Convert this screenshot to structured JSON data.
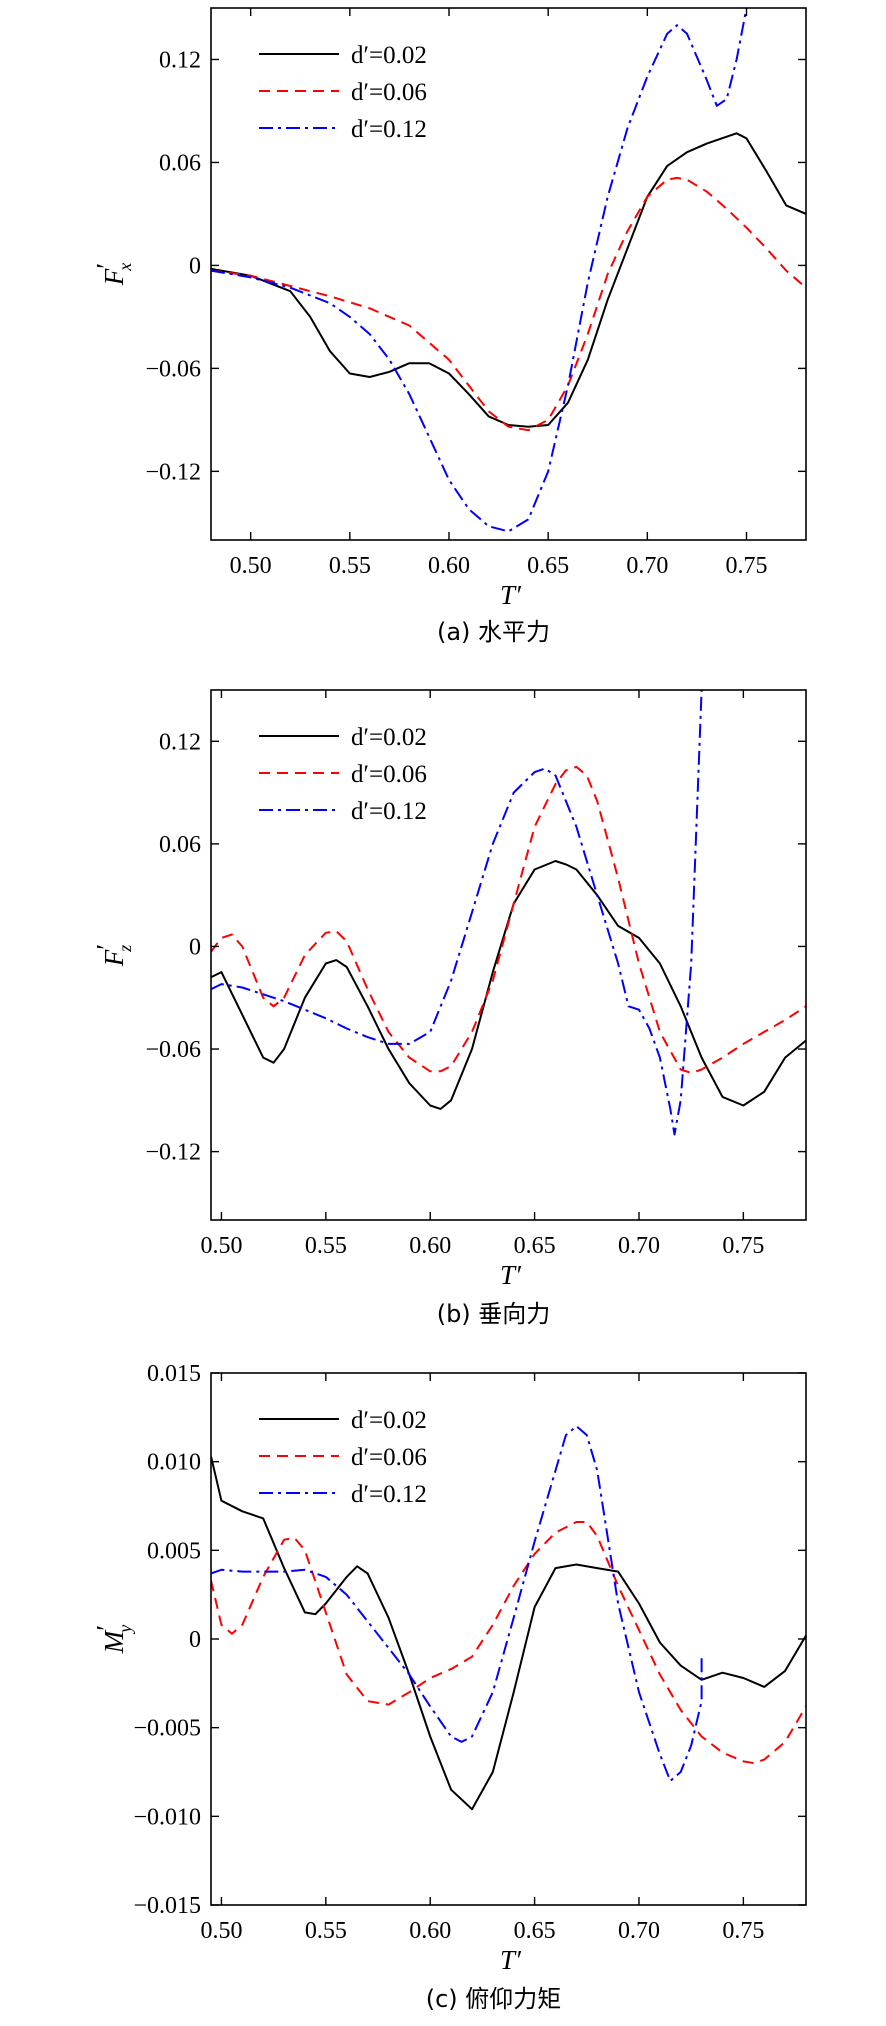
{
  "chart_data": [
    {
      "type": "line",
      "caption": "(a) 水平力",
      "xlabel": "T′",
      "ylabel_main": "F",
      "ylabel_prime": "′",
      "ylabel_sub": "x",
      "xlim": [
        0.48,
        0.78
      ],
      "ylim": [
        -0.16,
        0.15
      ],
      "xticks": [
        0.5,
        0.55,
        0.6,
        0.65,
        0.7,
        0.75
      ],
      "xtick_labels": [
        "0.50",
        "0.55",
        "0.60",
        "0.65",
        "0.70",
        "0.75"
      ],
      "yticks": [
        0.12,
        0.06,
        0,
        -0.06,
        -0.12
      ],
      "ytick_labels": [
        "0.12",
        "0.06",
        "0",
        "−0.06",
        "−0.12"
      ],
      "legend_position": "top-left",
      "series": [
        {
          "name": "d′=0.02",
          "color": "#000000",
          "dash": "solid",
          "x": [
            0.48,
            0.5,
            0.52,
            0.53,
            0.54,
            0.55,
            0.56,
            0.57,
            0.58,
            0.59,
            0.6,
            0.61,
            0.62,
            0.63,
            0.64,
            0.65,
            0.66,
            0.67,
            0.68,
            0.69,
            0.7,
            0.71,
            0.72,
            0.73,
            0.74,
            0.745,
            0.75,
            0.76,
            0.77,
            0.78
          ],
          "y": [
            -0.002,
            -0.006,
            -0.015,
            -0.03,
            -0.05,
            -0.063,
            -0.065,
            -0.062,
            -0.057,
            -0.057,
            -0.063,
            -0.075,
            -0.088,
            -0.093,
            -0.094,
            -0.093,
            -0.08,
            -0.055,
            -0.02,
            0.01,
            0.04,
            0.058,
            0.066,
            0.071,
            0.075,
            0.077,
            0.074,
            0.055,
            0.035,
            0.03
          ]
        },
        {
          "name": "d′=0.06",
          "color": "#ff0000",
          "dash": "dashed",
          "x": [
            0.48,
            0.5,
            0.52,
            0.54,
            0.56,
            0.58,
            0.6,
            0.61,
            0.62,
            0.63,
            0.64,
            0.65,
            0.66,
            0.67,
            0.68,
            0.69,
            0.7,
            0.71,
            0.715,
            0.72,
            0.73,
            0.74,
            0.75,
            0.76,
            0.77,
            0.78
          ],
          "y": [
            -0.003,
            -0.006,
            -0.012,
            -0.018,
            -0.025,
            -0.035,
            -0.055,
            -0.07,
            -0.085,
            -0.094,
            -0.096,
            -0.09,
            -0.07,
            -0.04,
            -0.005,
            0.02,
            0.04,
            0.05,
            0.051,
            0.05,
            0.043,
            0.033,
            0.022,
            0.01,
            -0.003,
            -0.013
          ]
        },
        {
          "name": "d′=0.12",
          "color": "#0000ff",
          "dash": "dashdot",
          "x": [
            0.48,
            0.5,
            0.52,
            0.54,
            0.55,
            0.56,
            0.57,
            0.58,
            0.59,
            0.6,
            0.61,
            0.62,
            0.63,
            0.64,
            0.65,
            0.66,
            0.67,
            0.68,
            0.69,
            0.7,
            0.71,
            0.715,
            0.72,
            0.73,
            0.735,
            0.74,
            0.745,
            0.75
          ],
          "y": [
            -0.003,
            -0.007,
            -0.013,
            -0.022,
            -0.03,
            -0.04,
            -0.055,
            -0.075,
            -0.1,
            -0.125,
            -0.142,
            -0.152,
            -0.155,
            -0.148,
            -0.12,
            -0.07,
            -0.01,
            0.04,
            0.08,
            0.11,
            0.135,
            0.14,
            0.135,
            0.108,
            0.093,
            0.097,
            0.12,
            0.15
          ]
        }
      ]
    },
    {
      "type": "line",
      "caption": "(b) 垂向力",
      "xlabel": "T′",
      "ylabel_main": "F",
      "ylabel_prime": "′",
      "ylabel_sub": "z",
      "xlim": [
        0.495,
        0.78
      ],
      "ylim": [
        -0.16,
        0.15
      ],
      "xticks": [
        0.5,
        0.55,
        0.6,
        0.65,
        0.7,
        0.75
      ],
      "xtick_labels": [
        "0.50",
        "0.55",
        "0.60",
        "0.65",
        "0.70",
        "0.75"
      ],
      "yticks": [
        0.12,
        0.06,
        0,
        -0.06,
        -0.12
      ],
      "ytick_labels": [
        "0.12",
        "0.06",
        "0",
        "−0.06",
        "−0.12"
      ],
      "legend_position": "top-left",
      "series": [
        {
          "name": "d′=0.02",
          "color": "#000000",
          "dash": "solid",
          "x": [
            0.495,
            0.5,
            0.51,
            0.52,
            0.525,
            0.53,
            0.54,
            0.55,
            0.555,
            0.56,
            0.57,
            0.58,
            0.59,
            0.6,
            0.605,
            0.61,
            0.62,
            0.63,
            0.64,
            0.65,
            0.66,
            0.665,
            0.67,
            0.68,
            0.69,
            0.7,
            0.71,
            0.72,
            0.73,
            0.74,
            0.75,
            0.76,
            0.77,
            0.78
          ],
          "y": [
            -0.018,
            -0.015,
            -0.04,
            -0.065,
            -0.068,
            -0.06,
            -0.03,
            -0.01,
            -0.008,
            -0.012,
            -0.035,
            -0.06,
            -0.08,
            -0.093,
            -0.095,
            -0.09,
            -0.06,
            -0.015,
            0.025,
            0.045,
            0.05,
            0.048,
            0.045,
            0.03,
            0.012,
            0.005,
            -0.01,
            -0.035,
            -0.065,
            -0.088,
            -0.093,
            -0.085,
            -0.065,
            -0.055
          ]
        },
        {
          "name": "d′=0.06",
          "color": "#ff0000",
          "dash": "dashed",
          "x": [
            0.495,
            0.5,
            0.505,
            0.51,
            0.52,
            0.525,
            0.53,
            0.54,
            0.55,
            0.555,
            0.56,
            0.57,
            0.58,
            0.59,
            0.6,
            0.605,
            0.61,
            0.62,
            0.63,
            0.64,
            0.65,
            0.66,
            0.665,
            0.67,
            0.675,
            0.68,
            0.69,
            0.7,
            0.71,
            0.72,
            0.725,
            0.73,
            0.74,
            0.75,
            0.76,
            0.77,
            0.78
          ],
          "y": [
            -0.003,
            0.005,
            0.007,
            0.0,
            -0.03,
            -0.035,
            -0.03,
            -0.005,
            0.008,
            0.009,
            0.003,
            -0.025,
            -0.05,
            -0.065,
            -0.073,
            -0.073,
            -0.07,
            -0.05,
            -0.02,
            0.025,
            0.07,
            0.095,
            0.103,
            0.105,
            0.1,
            0.085,
            0.04,
            -0.01,
            -0.05,
            -0.072,
            -0.074,
            -0.072,
            -0.065,
            -0.057,
            -0.05,
            -0.043,
            -0.035
          ]
        },
        {
          "name": "d′=0.12",
          "color": "#0000ff",
          "dash": "dashdot",
          "x": [
            0.495,
            0.5,
            0.51,
            0.52,
            0.53,
            0.54,
            0.55,
            0.56,
            0.57,
            0.58,
            0.59,
            0.6,
            0.61,
            0.62,
            0.63,
            0.64,
            0.65,
            0.655,
            0.66,
            0.67,
            0.68,
            0.69,
            0.695,
            0.7,
            0.705,
            0.71,
            0.715,
            0.717,
            0.72,
            0.725,
            0.73
          ],
          "y": [
            -0.025,
            -0.022,
            -0.024,
            -0.028,
            -0.032,
            -0.037,
            -0.042,
            -0.048,
            -0.053,
            -0.057,
            -0.057,
            -0.05,
            -0.02,
            0.02,
            0.06,
            0.09,
            0.102,
            0.104,
            0.1,
            0.07,
            0.03,
            -0.01,
            -0.035,
            -0.037,
            -0.048,
            -0.065,
            -0.095,
            -0.11,
            -0.09,
            -0.01,
            0.15
          ]
        }
      ]
    },
    {
      "type": "line",
      "caption": "(c) 俯仰力矩",
      "xlabel": "T′",
      "ylabel_main": "M",
      "ylabel_prime": "′",
      "ylabel_sub": "y",
      "xlim": [
        0.495,
        0.78
      ],
      "ylim": [
        -0.015,
        0.015
      ],
      "xticks": [
        0.5,
        0.55,
        0.6,
        0.65,
        0.7,
        0.75
      ],
      "xtick_labels": [
        "0.50",
        "0.55",
        "0.60",
        "0.65",
        "0.70",
        "0.75"
      ],
      "yticks": [
        0.015,
        0.01,
        0.005,
        0,
        -0.005,
        -0.01,
        -0.015
      ],
      "ytick_labels": [
        "0.015",
        "0.010",
        "0.005",
        "0",
        "−0.005",
        "−0.010",
        "−0.015"
      ],
      "legend_position": "top-left",
      "series": [
        {
          "name": "d′=0.02",
          "color": "#000000",
          "dash": "solid",
          "x": [
            0.495,
            0.5,
            0.51,
            0.52,
            0.53,
            0.54,
            0.545,
            0.55,
            0.56,
            0.565,
            0.57,
            0.58,
            0.59,
            0.6,
            0.61,
            0.62,
            0.63,
            0.64,
            0.65,
            0.66,
            0.67,
            0.68,
            0.69,
            0.7,
            0.71,
            0.72,
            0.73,
            0.74,
            0.75,
            0.76,
            0.77,
            0.78
          ],
          "y": [
            0.0103,
            0.0078,
            0.0072,
            0.0068,
            0.004,
            0.0015,
            0.0014,
            0.002,
            0.0035,
            0.0041,
            0.0037,
            0.0012,
            -0.002,
            -0.0055,
            -0.0085,
            -0.0096,
            -0.0075,
            -0.003,
            0.0018,
            0.004,
            0.0042,
            0.004,
            0.0038,
            0.002,
            -0.0002,
            -0.0015,
            -0.0023,
            -0.0019,
            -0.0022,
            -0.0027,
            -0.0018,
            0.0002
          ]
        },
        {
          "name": "d′=0.06",
          "color": "#ff0000",
          "dash": "dashed",
          "x": [
            0.495,
            0.5,
            0.505,
            0.51,
            0.52,
            0.53,
            0.535,
            0.54,
            0.55,
            0.56,
            0.57,
            0.58,
            0.59,
            0.6,
            0.61,
            0.62,
            0.63,
            0.64,
            0.65,
            0.66,
            0.67,
            0.675,
            0.68,
            0.69,
            0.7,
            0.71,
            0.72,
            0.73,
            0.74,
            0.75,
            0.755,
            0.76,
            0.77,
            0.78
          ],
          "y": [
            0.0033,
            0.0008,
            0.0003,
            0.0008,
            0.0035,
            0.0056,
            0.0057,
            0.005,
            0.0015,
            -0.002,
            -0.0035,
            -0.0037,
            -0.003,
            -0.0022,
            -0.0017,
            -0.001,
            0.0008,
            0.003,
            0.0048,
            0.006,
            0.0066,
            0.0066,
            0.0058,
            0.003,
            0.0005,
            -0.002,
            -0.004,
            -0.0055,
            -0.0064,
            -0.0069,
            -0.007,
            -0.0068,
            -0.0058,
            -0.0038
          ]
        },
        {
          "name": "d′=0.12",
          "color": "#0000ff",
          "dash": "dashdot",
          "x": [
            0.495,
            0.5,
            0.51,
            0.52,
            0.53,
            0.54,
            0.55,
            0.56,
            0.57,
            0.58,
            0.59,
            0.6,
            0.61,
            0.615,
            0.62,
            0.63,
            0.64,
            0.65,
            0.66,
            0.665,
            0.67,
            0.675,
            0.68,
            0.69,
            0.7,
            0.71,
            0.715,
            0.72,
            0.725,
            0.73,
            0.73
          ],
          "y": [
            0.0037,
            0.0039,
            0.0038,
            0.0038,
            0.0038,
            0.0039,
            0.0035,
            0.0025,
            0.001,
            -0.0005,
            -0.002,
            -0.0038,
            -0.0055,
            -0.0058,
            -0.0055,
            -0.003,
            0.0012,
            0.0055,
            0.0095,
            0.0115,
            0.012,
            0.0115,
            0.0095,
            0.002,
            -0.003,
            -0.0065,
            -0.008,
            -0.0075,
            -0.006,
            -0.0035,
            -0.001
          ]
        }
      ]
    }
  ]
}
